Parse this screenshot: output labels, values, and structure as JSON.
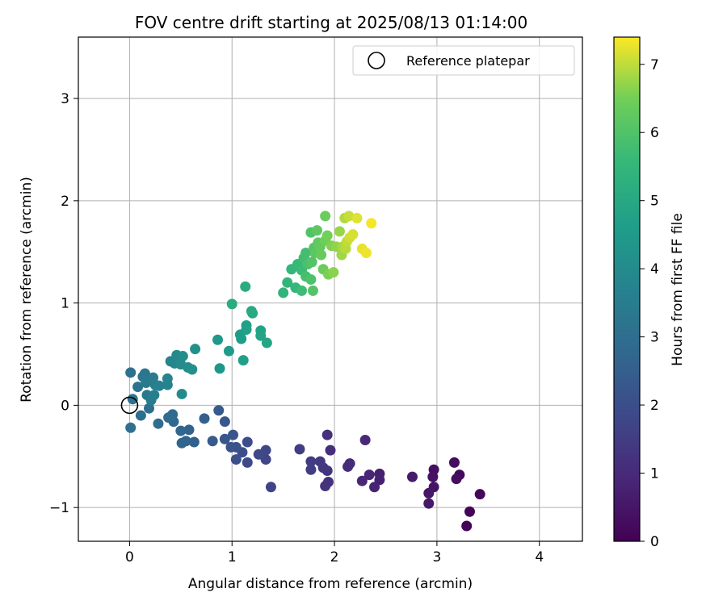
{
  "chart_data": {
    "type": "scatter",
    "title": "FOV centre drift starting at 2025/08/13 01:14:00",
    "xlabel": "Angular distance from reference (arcmin)",
    "ylabel": "Rotation from reference (arcmin)",
    "xlim": [
      -0.5,
      4.42
    ],
    "ylim": [
      -1.33,
      3.6
    ],
    "xticks": [
      0,
      1,
      2,
      3,
      4
    ],
    "yticks": [
      -1,
      0,
      1,
      2,
      3
    ],
    "xtick_labels": [
      "0",
      "1",
      "2",
      "3",
      "4"
    ],
    "ytick_labels": [
      "−1",
      "0",
      "1",
      "2",
      "3"
    ],
    "grid": true,
    "legend": {
      "position": "top-right",
      "label": "Reference platepar",
      "marker": "open-circle"
    },
    "reference_point": {
      "x": 0,
      "y": 0
    },
    "colorbar": {
      "label": "Hours from first FF file",
      "colormap": "viridis",
      "range": [
        0,
        7.4
      ],
      "ticks": [
        0,
        1,
        2,
        3,
        4,
        5,
        6,
        7
      ],
      "tick_labels": [
        "0",
        "1",
        "2",
        "3",
        "4",
        "5",
        "6",
        "7"
      ]
    },
    "points": [
      {
        "x": 3.29,
        "y": -1.18,
        "c": 0.05
      },
      {
        "x": 3.32,
        "y": -1.04,
        "c": 0.1
      },
      {
        "x": 3.42,
        "y": -0.87,
        "c": 0.15
      },
      {
        "x": 3.22,
        "y": -0.68,
        "c": 0.2
      },
      {
        "x": 3.17,
        "y": -0.56,
        "c": 0.25
      },
      {
        "x": 3.19,
        "y": -0.72,
        "c": 0.3
      },
      {
        "x": 2.97,
        "y": -0.63,
        "c": 0.35
      },
      {
        "x": 2.96,
        "y": -0.7,
        "c": 0.4
      },
      {
        "x": 2.97,
        "y": -0.8,
        "c": 0.45
      },
      {
        "x": 2.92,
        "y": -0.86,
        "c": 0.5
      },
      {
        "x": 2.92,
        "y": -0.96,
        "c": 0.55
      },
      {
        "x": 2.76,
        "y": -0.7,
        "c": 0.6
      },
      {
        "x": 2.44,
        "y": -0.67,
        "c": 0.7
      },
      {
        "x": 2.44,
        "y": -0.73,
        "c": 0.75
      },
      {
        "x": 2.39,
        "y": -0.8,
        "c": 0.8
      },
      {
        "x": 2.34,
        "y": -0.68,
        "c": 0.85
      },
      {
        "x": 2.27,
        "y": -0.74,
        "c": 0.9
      },
      {
        "x": 2.3,
        "y": -0.34,
        "c": 0.95
      },
      {
        "x": 2.15,
        "y": -0.57,
        "c": 1.0
      },
      {
        "x": 2.13,
        "y": -0.6,
        "c": 1.05
      },
      {
        "x": 1.96,
        "y": -0.44,
        "c": 1.1
      },
      {
        "x": 1.93,
        "y": -0.29,
        "c": 1.15
      },
      {
        "x": 1.94,
        "y": -0.75,
        "c": 1.2
      },
      {
        "x": 1.91,
        "y": -0.79,
        "c": 1.25
      },
      {
        "x": 1.93,
        "y": -0.64,
        "c": 1.3
      },
      {
        "x": 1.89,
        "y": -0.61,
        "c": 1.35
      },
      {
        "x": 1.86,
        "y": -0.55,
        "c": 1.4
      },
      {
        "x": 1.77,
        "y": -0.55,
        "c": 1.45
      },
      {
        "x": 1.77,
        "y": -0.63,
        "c": 1.5
      },
      {
        "x": 1.66,
        "y": -0.43,
        "c": 1.55
      },
      {
        "x": 1.38,
        "y": -0.8,
        "c": 1.7
      },
      {
        "x": 1.33,
        "y": -0.53,
        "c": 1.75
      },
      {
        "x": 1.33,
        "y": -0.44,
        "c": 1.8
      },
      {
        "x": 1.26,
        "y": -0.48,
        "c": 1.85
      },
      {
        "x": 1.15,
        "y": -0.56,
        "c": 1.9
      },
      {
        "x": 1.15,
        "y": -0.36,
        "c": 1.95
      },
      {
        "x": 1.1,
        "y": -0.46,
        "c": 2.0
      },
      {
        "x": 1.04,
        "y": -0.53,
        "c": 2.05
      },
      {
        "x": 1.04,
        "y": -0.41,
        "c": 2.1
      },
      {
        "x": 0.99,
        "y": -0.41,
        "c": 2.15
      },
      {
        "x": 1.01,
        "y": -0.29,
        "c": 2.2
      },
      {
        "x": 0.93,
        "y": -0.33,
        "c": 2.25
      },
      {
        "x": 0.93,
        "y": -0.16,
        "c": 2.3
      },
      {
        "x": 0.87,
        "y": -0.05,
        "c": 2.35
      },
      {
        "x": 0.81,
        "y": -0.35,
        "c": 2.4
      },
      {
        "x": 0.73,
        "y": -0.13,
        "c": 2.5
      },
      {
        "x": 0.63,
        "y": -0.36,
        "c": 2.55
      },
      {
        "x": 0.58,
        "y": -0.24,
        "c": 2.6
      },
      {
        "x": 0.55,
        "y": -0.35,
        "c": 2.65
      },
      {
        "x": 0.51,
        "y": -0.37,
        "c": 2.7
      },
      {
        "x": 0.5,
        "y": -0.25,
        "c": 2.75
      },
      {
        "x": 0.43,
        "y": -0.16,
        "c": 2.8
      },
      {
        "x": 0.42,
        "y": -0.09,
        "c": 2.85
      },
      {
        "x": 0.38,
        "y": -0.12,
        "c": 2.9
      },
      {
        "x": 0.28,
        "y": -0.18,
        "c": 2.95
      },
      {
        "x": 0.19,
        "y": -0.03,
        "c": 3.0
      },
      {
        "x": 0.11,
        "y": -0.1,
        "c": 3.0
      },
      {
        "x": 0.01,
        "y": -0.22,
        "c": 3.05
      },
      {
        "x": 0.01,
        "y": 0.32,
        "c": 3.1
      },
      {
        "x": 0.03,
        "y": 0.06,
        "c": 3.15
      },
      {
        "x": 0.08,
        "y": 0.18,
        "c": 3.2
      },
      {
        "x": 0.15,
        "y": 0.31,
        "c": 3.25
      },
      {
        "x": 0.13,
        "y": 0.28,
        "c": 3.3
      },
      {
        "x": 0.17,
        "y": 0.1,
        "c": 3.35
      },
      {
        "x": 0.16,
        "y": 0.22,
        "c": 3.4
      },
      {
        "x": 0.21,
        "y": 0.05,
        "c": 3.45
      },
      {
        "x": 0.23,
        "y": 0.27,
        "c": 3.5
      },
      {
        "x": 0.24,
        "y": 0.1,
        "c": 3.55
      },
      {
        "x": 0.25,
        "y": 0.2,
        "c": 3.6
      },
      {
        "x": 0.29,
        "y": 0.19,
        "c": 3.65
      },
      {
        "x": 0.37,
        "y": 0.2,
        "c": 3.7
      },
      {
        "x": 0.37,
        "y": 0.26,
        "c": 3.75
      },
      {
        "x": 0.4,
        "y": 0.43,
        "c": 3.8
      },
      {
        "x": 0.44,
        "y": 0.41,
        "c": 3.85
      },
      {
        "x": 0.46,
        "y": 0.49,
        "c": 3.9
      },
      {
        "x": 0.5,
        "y": 0.4,
        "c": 3.95
      },
      {
        "x": 0.51,
        "y": 0.11,
        "c": 4.0
      },
      {
        "x": 0.52,
        "y": 0.48,
        "c": 4.05
      },
      {
        "x": 0.57,
        "y": 0.37,
        "c": 4.1
      },
      {
        "x": 0.61,
        "y": 0.35,
        "c": 4.15
      },
      {
        "x": 0.64,
        "y": 0.55,
        "c": 4.2
      },
      {
        "x": 0.88,
        "y": 0.36,
        "c": 4.35
      },
      {
        "x": 0.86,
        "y": 0.64,
        "c": 4.45
      },
      {
        "x": 0.97,
        "y": 0.53,
        "c": 4.5
      },
      {
        "x": 1.08,
        "y": 0.69,
        "c": 4.55
      },
      {
        "x": 1.09,
        "y": 0.65,
        "c": 4.6
      },
      {
        "x": 1.11,
        "y": 0.44,
        "c": 4.65
      },
      {
        "x": 1.14,
        "y": 0.78,
        "c": 4.7
      },
      {
        "x": 1.14,
        "y": 0.74,
        "c": 4.75
      },
      {
        "x": 1.28,
        "y": 0.73,
        "c": 4.8
      },
      {
        "x": 1.28,
        "y": 0.68,
        "c": 4.85
      },
      {
        "x": 1.34,
        "y": 0.61,
        "c": 4.9
      },
      {
        "x": 1.19,
        "y": 0.92,
        "c": 5.0
      },
      {
        "x": 1.2,
        "y": 0.9,
        "c": 5.05
      },
      {
        "x": 1.13,
        "y": 1.16,
        "c": 5.1
      },
      {
        "x": 1.0,
        "y": 0.99,
        "c": 5.15
      },
      {
        "x": 1.5,
        "y": 1.1,
        "c": 5.4
      },
      {
        "x": 1.54,
        "y": 1.2,
        "c": 5.45
      },
      {
        "x": 1.58,
        "y": 1.33,
        "c": 5.5
      },
      {
        "x": 1.62,
        "y": 1.15,
        "c": 5.55
      },
      {
        "x": 1.64,
        "y": 1.38,
        "c": 5.6
      },
      {
        "x": 1.68,
        "y": 1.32,
        "c": 5.65
      },
      {
        "x": 1.68,
        "y": 1.12,
        "c": 5.7
      },
      {
        "x": 1.7,
        "y": 1.44,
        "c": 5.75
      },
      {
        "x": 1.72,
        "y": 1.49,
        "c": 5.8
      },
      {
        "x": 1.72,
        "y": 1.26,
        "c": 5.85
      },
      {
        "x": 1.74,
        "y": 1.38,
        "c": 5.9
      },
      {
        "x": 1.77,
        "y": 1.23,
        "c": 5.95
      },
      {
        "x": 1.77,
        "y": 1.69,
        "c": 6.0
      },
      {
        "x": 1.78,
        "y": 1.4,
        "c": 6.05
      },
      {
        "x": 1.79,
        "y": 1.12,
        "c": 6.05
      },
      {
        "x": 1.8,
        "y": 1.54,
        "c": 6.1
      },
      {
        "x": 1.81,
        "y": 1.49,
        "c": 6.15
      },
      {
        "x": 1.83,
        "y": 1.71,
        "c": 6.2
      },
      {
        "x": 1.84,
        "y": 1.59,
        "c": 6.25
      },
      {
        "x": 1.86,
        "y": 1.55,
        "c": 6.3
      },
      {
        "x": 1.87,
        "y": 1.47,
        "c": 6.35
      },
      {
        "x": 1.89,
        "y": 1.33,
        "c": 6.4
      },
      {
        "x": 1.91,
        "y": 1.85,
        "c": 6.4
      },
      {
        "x": 1.91,
        "y": 1.61,
        "c": 6.45
      },
      {
        "x": 1.93,
        "y": 1.66,
        "c": 6.5
      },
      {
        "x": 1.94,
        "y": 1.28,
        "c": 6.55
      },
      {
        "x": 1.97,
        "y": 1.56,
        "c": 6.6
      },
      {
        "x": 1.99,
        "y": 1.3,
        "c": 6.65
      },
      {
        "x": 2.02,
        "y": 1.55,
        "c": 6.7
      },
      {
        "x": 2.05,
        "y": 1.7,
        "c": 6.75
      },
      {
        "x": 2.07,
        "y": 1.47,
        "c": 6.8
      },
      {
        "x": 2.08,
        "y": 1.55,
        "c": 6.85
      },
      {
        "x": 2.1,
        "y": 1.83,
        "c": 6.9
      },
      {
        "x": 2.11,
        "y": 1.53,
        "c": 6.95
      },
      {
        "x": 2.12,
        "y": 1.6,
        "c": 7.0
      },
      {
        "x": 2.14,
        "y": 1.85,
        "c": 7.05
      },
      {
        "x": 2.15,
        "y": 1.64,
        "c": 7.1
      },
      {
        "x": 2.18,
        "y": 1.67,
        "c": 7.15
      },
      {
        "x": 2.22,
        "y": 1.83,
        "c": 7.2
      },
      {
        "x": 2.27,
        "y": 1.53,
        "c": 7.25
      },
      {
        "x": 2.31,
        "y": 1.49,
        "c": 7.3
      },
      {
        "x": 2.36,
        "y": 1.78,
        "c": 7.35
      }
    ]
  }
}
